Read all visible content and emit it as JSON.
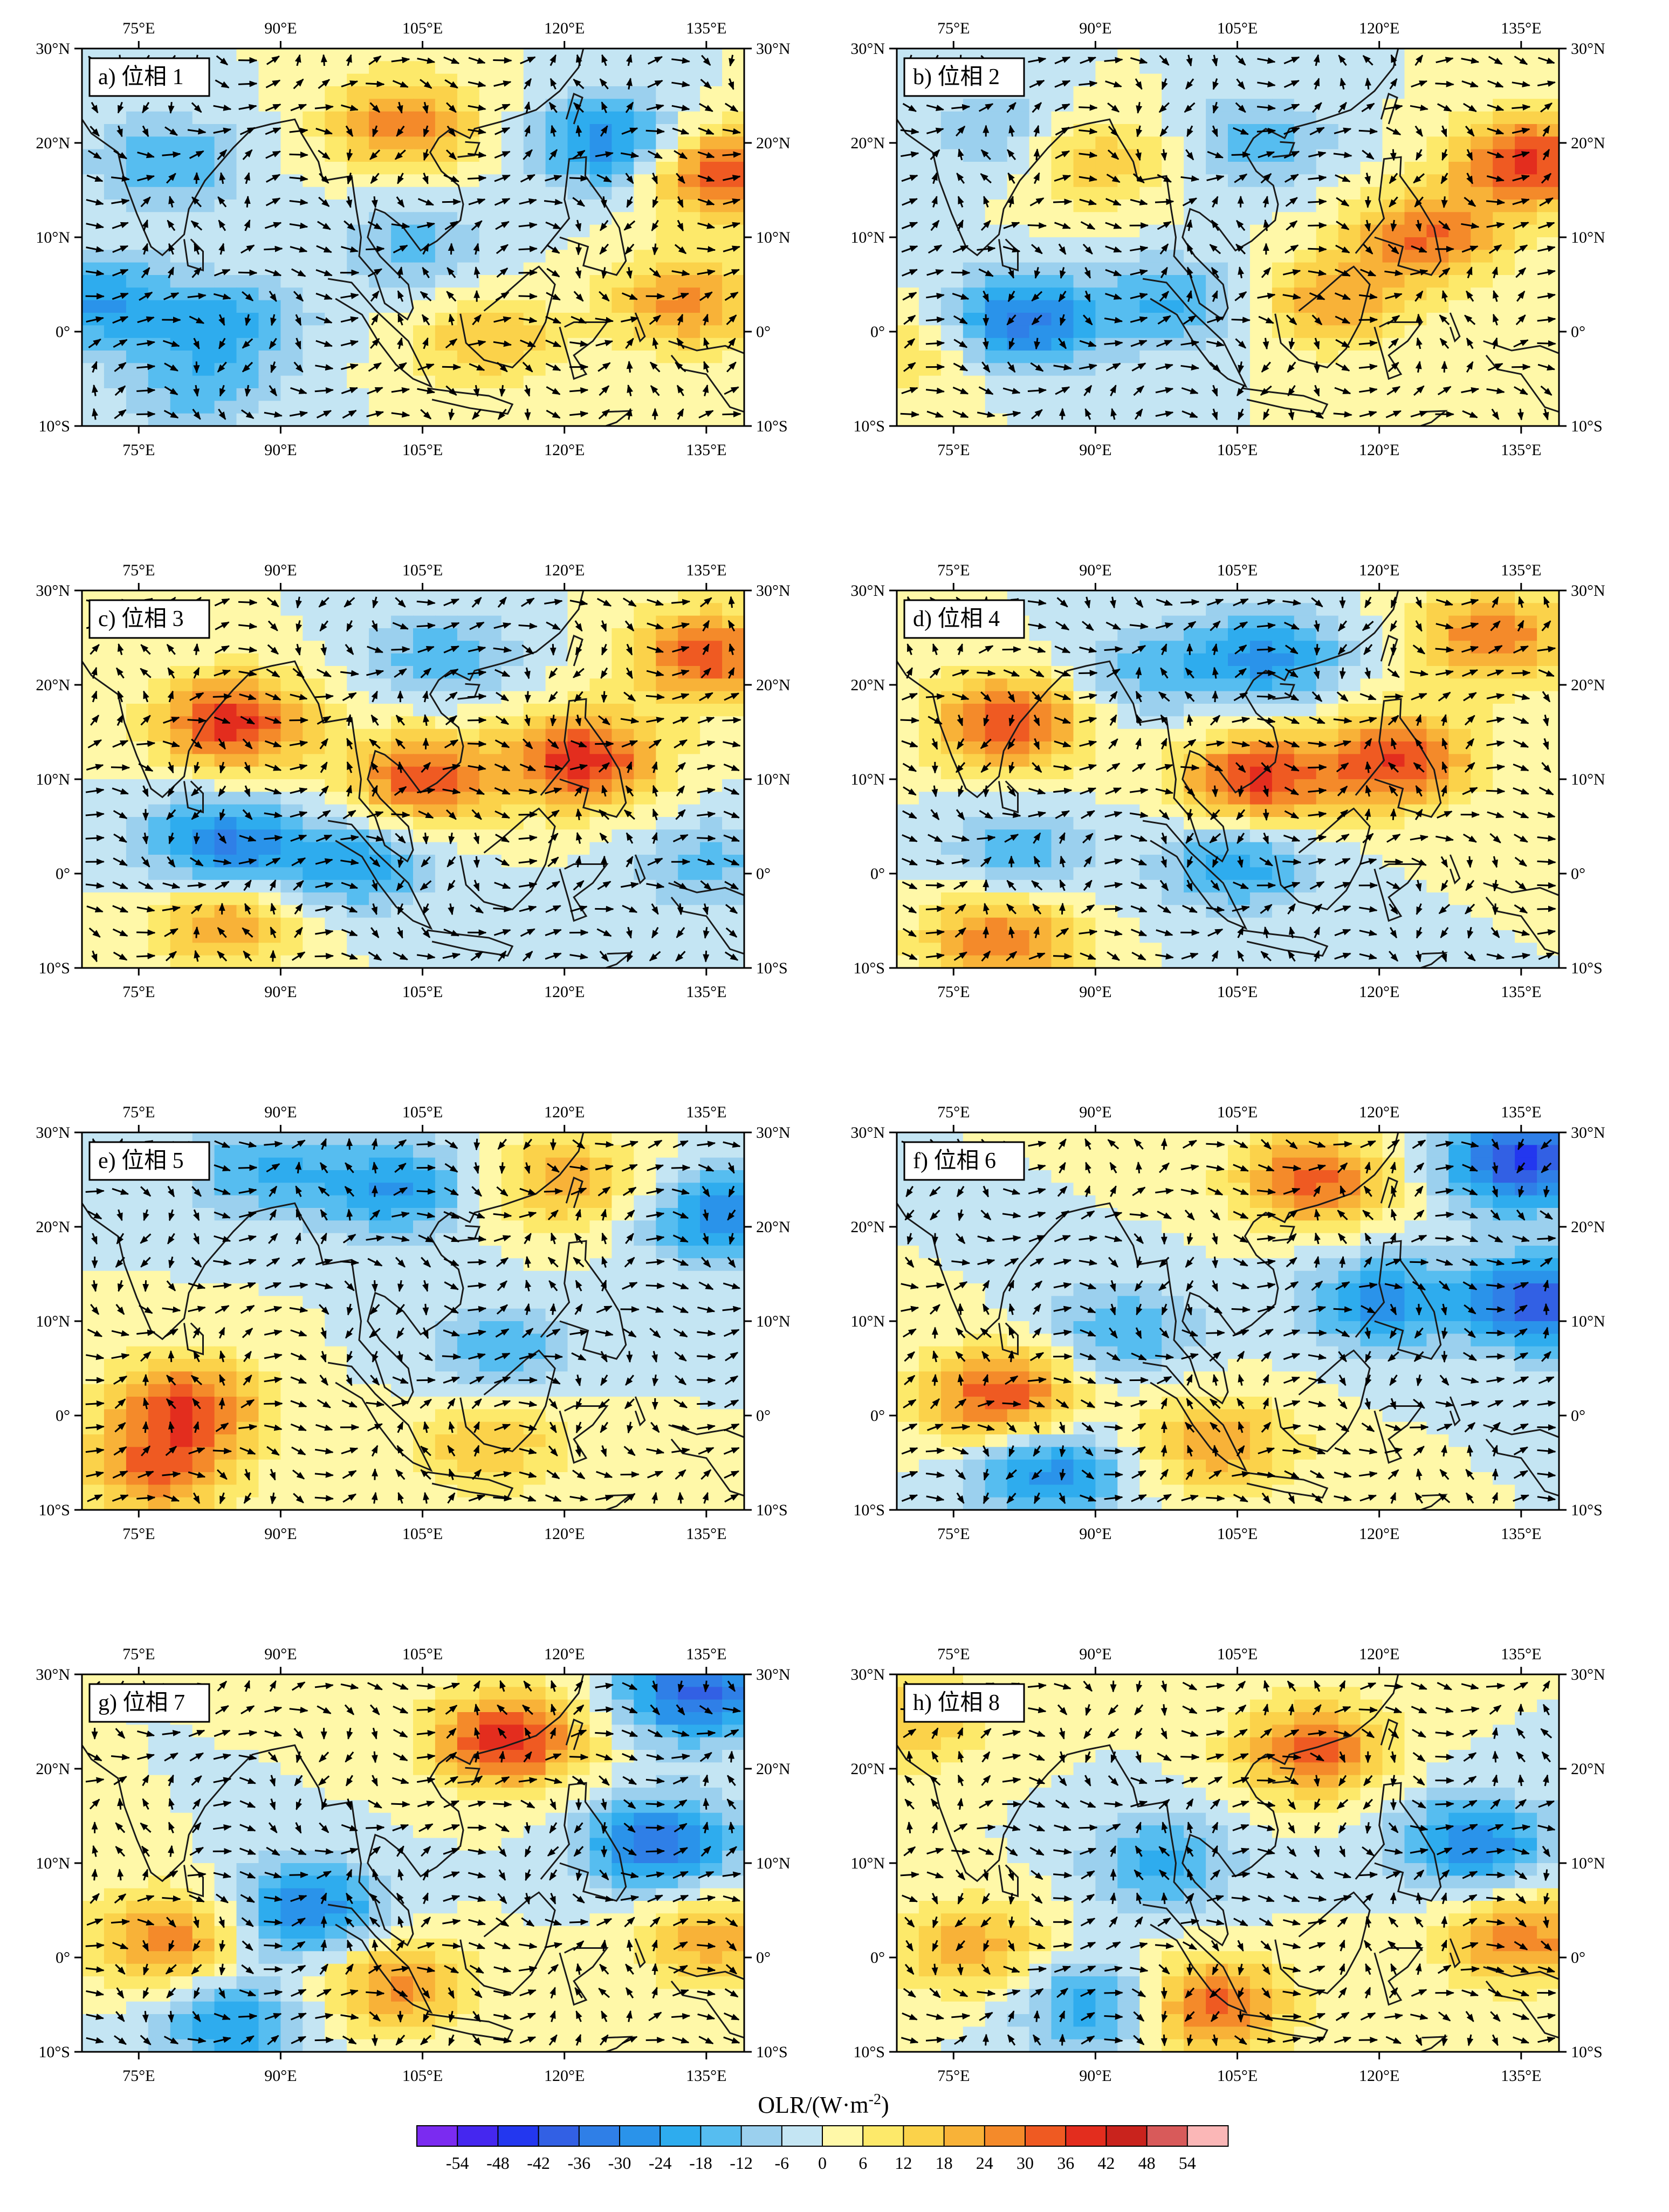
{
  "panels": [
    {
      "id": "a",
      "label": "a) 位相 1"
    },
    {
      "id": "b",
      "label": "b) 位相 2"
    },
    {
      "id": "c",
      "label": "c) 位相 3"
    },
    {
      "id": "d",
      "label": "d) 位相 4"
    },
    {
      "id": "e",
      "label": "e) 位相 5"
    },
    {
      "id": "f",
      "label": "f) 位相 6"
    },
    {
      "id": "g",
      "label": "g) 位相 7"
    },
    {
      "id": "h",
      "label": "h) 位相 8"
    }
  ],
  "axes": {
    "lon_ticks": [
      "75°E",
      "90°E",
      "105°E",
      "120°E",
      "135°E"
    ],
    "lon_values": [
      75,
      90,
      105,
      120,
      135
    ],
    "lat_ticks": [
      "30°N",
      "20°N",
      "10°N",
      "0°",
      "10°S"
    ],
    "lat_values": [
      30,
      20,
      10,
      0,
      -10
    ],
    "lon_range": [
      69,
      139
    ],
    "lat_range": [
      -10,
      30
    ]
  },
  "colorbar": {
    "title_main": "OLR/(W·m",
    "title_sup": "-2",
    "title_close": ")",
    "labels": [
      "-54",
      "-48",
      "-42",
      "-36",
      "-30",
      "-24",
      "-18",
      "-12",
      "-6",
      "0",
      "6",
      "12",
      "18",
      "24",
      "30",
      "36",
      "42",
      "48",
      "54"
    ],
    "colors": [
      "#7b2bf0",
      "#4527ef",
      "#2337ef",
      "#3260e4",
      "#2f7fe7",
      "#2a93ea",
      "#2eacee",
      "#56bdf0",
      "#9bd0ee",
      "#c4e5f3",
      "#fff8a8",
      "#fde96a",
      "#fbd24a",
      "#f8b238",
      "#f48a2a",
      "#ef5a22",
      "#e32d1e",
      "#c9231d",
      "#d85a5a",
      "#fbb7b7"
    ]
  },
  "colors": {
    "vector": "#000000",
    "coast": "#1a1a1a",
    "frame": "#000000"
  },
  "chart_data": {
    "type": "map",
    "variable": "OLR anomaly with wind vectors",
    "panels": [
      "a) 位相 1",
      "b) 位相 2",
      "c) 位相 3",
      "d) 位相 4",
      "e) 位相 5",
      "f) 位相 6",
      "g) 位相 7",
      "h) 位相 8"
    ],
    "lon_range": [
      69,
      139
    ],
    "lat_range": [
      -10,
      30
    ],
    "color_levels": [
      -54,
      -48,
      -42,
      -36,
      -30,
      -24,
      -18,
      -12,
      -6,
      0,
      6,
      12,
      18,
      24,
      30,
      36,
      42,
      48,
      54
    ],
    "anomaly_centers": [
      [
        {
          "lon": 78,
          "lat": 18,
          "v": -18
        },
        {
          "lon": 103,
          "lat": 22,
          "v": 28
        },
        {
          "lon": 104,
          "lat": 9,
          "v": -14
        },
        {
          "lon": 125,
          "lat": 20,
          "v": -30
        },
        {
          "lon": 136,
          "lat": 17,
          "v": 36
        },
        {
          "lon": 133,
          "lat": 3,
          "v": 26
        },
        {
          "lon": 71,
          "lat": 3,
          "v": -24
        },
        {
          "lon": 85,
          "lat": 1,
          "v": -18
        },
        {
          "lon": 112,
          "lat": -1,
          "v": 18
        },
        {
          "lon": 81,
          "lat": -6,
          "v": -14
        }
      ],
      [
        {
          "lon": 80,
          "lat": 21,
          "v": -12
        },
        {
          "lon": 90,
          "lat": 18,
          "v": 18
        },
        {
          "lon": 107,
          "lat": 20,
          "v": -16
        },
        {
          "lon": 136,
          "lat": 18,
          "v": 38
        },
        {
          "lon": 125,
          "lat": 10,
          "v": 30
        },
        {
          "lon": 82,
          "lat": 1,
          "v": -34
        },
        {
          "lon": 98,
          "lat": 3,
          "v": -18
        },
        {
          "lon": 115,
          "lat": 3,
          "v": 22
        },
        {
          "lon": 72,
          "lat": -2,
          "v": 12
        }
      ],
      [
        {
          "lon": 85,
          "lat": 16,
          "v": 40
        },
        {
          "lon": 105,
          "lat": 10,
          "v": 34
        },
        {
          "lon": 122,
          "lat": 12,
          "v": 40
        },
        {
          "lon": 135,
          "lat": 23,
          "v": 34
        },
        {
          "lon": 84,
          "lat": 3,
          "v": -32
        },
        {
          "lon": 98,
          "lat": 1,
          "v": -22
        },
        {
          "lon": 107,
          "lat": 23,
          "v": -16
        },
        {
          "lon": 84,
          "lat": -5,
          "v": 24
        },
        {
          "lon": 135,
          "lat": 1,
          "v": -14
        }
      ],
      [
        {
          "lon": 81,
          "lat": 16,
          "v": 36
        },
        {
          "lon": 107,
          "lat": 10,
          "v": 38
        },
        {
          "lon": 122,
          "lat": 12,
          "v": 36
        },
        {
          "lon": 132,
          "lat": 25,
          "v": 30
        },
        {
          "lon": 108,
          "lat": 23,
          "v": -26
        },
        {
          "lon": 82,
          "lat": 2,
          "v": -16
        },
        {
          "lon": 105,
          "lat": 1,
          "v": -22
        },
        {
          "lon": 80,
          "lat": -7,
          "v": 30
        },
        {
          "lon": 95,
          "lat": 21,
          "v": -14
        }
      ],
      [
        {
          "lon": 80,
          "lat": 1,
          "v": 34
        },
        {
          "lon": 77,
          "lat": -6,
          "v": 28
        },
        {
          "lon": 102,
          "lat": 24,
          "v": -24
        },
        {
          "lon": 120,
          "lat": 25,
          "v": 22
        },
        {
          "lon": 113,
          "lat": 7,
          "v": -16
        },
        {
          "lon": 137,
          "lat": 21,
          "v": -30
        },
        {
          "lon": 112,
          "lat": -3,
          "v": 18
        },
        {
          "lon": 88,
          "lat": 26,
          "v": -18
        }
      ],
      [
        {
          "lon": 80,
          "lat": 2,
          "v": 36
        },
        {
          "lon": 113,
          "lat": 25,
          "v": 32
        },
        {
          "lon": 135,
          "lat": 27,
          "v": -44
        },
        {
          "lon": 137,
          "lat": 12,
          "v": -40
        },
        {
          "lon": 85,
          "lat": -6,
          "v": -28
        },
        {
          "lon": 103,
          "lat": -3,
          "v": 24
        },
        {
          "lon": 120,
          "lat": 12,
          "v": -26
        },
        {
          "lon": 93,
          "lat": 9,
          "v": -18
        }
      ],
      [
        {
          "lon": 114,
          "lat": 23,
          "v": 40
        },
        {
          "lon": 134,
          "lat": 28,
          "v": -38
        },
        {
          "lon": 130,
          "lat": 12,
          "v": -34
        },
        {
          "lon": 78,
          "lat": 2,
          "v": 28
        },
        {
          "lon": 93,
          "lat": 5,
          "v": -30
        },
        {
          "lon": 102,
          "lat": -3,
          "v": 26
        },
        {
          "lon": 85,
          "lat": -7,
          "v": -24
        },
        {
          "lon": 136,
          "lat": 2,
          "v": 22
        }
      ],
      [
        {
          "lon": 113,
          "lat": 22,
          "v": 32
        },
        {
          "lon": 130,
          "lat": 12,
          "v": -30
        },
        {
          "lon": 102,
          "lat": -5,
          "v": 34
        },
        {
          "lon": 77,
          "lat": 1,
          "v": 22
        },
        {
          "lon": 90,
          "lat": -5,
          "v": -24
        },
        {
          "lon": 97,
          "lat": 10,
          "v": -20
        },
        {
          "lon": 135,
          "lat": 2,
          "v": 28
        },
        {
          "lon": 71,
          "lat": 25,
          "v": 18
        }
      ]
    ]
  }
}
